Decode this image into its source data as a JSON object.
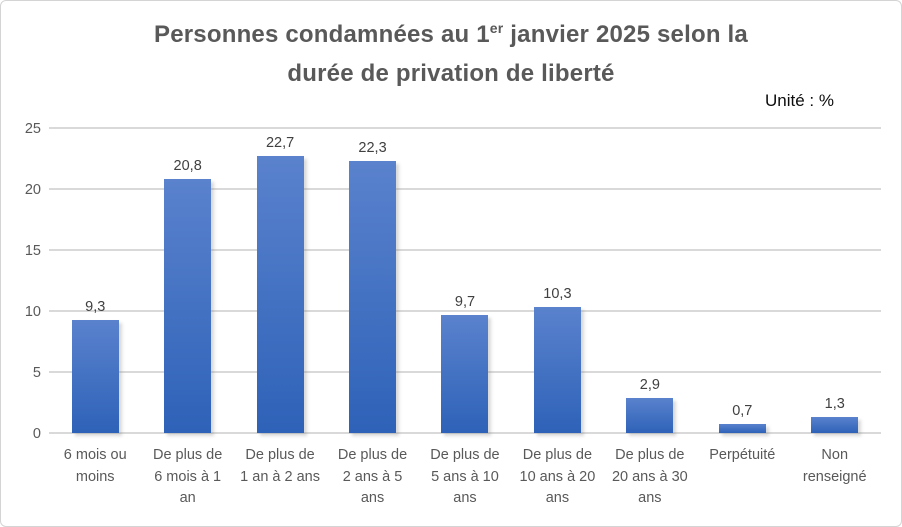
{
  "title": {
    "full": "Personnes condamnées au 1er janvier 2025 selon la durée de privation de liberté",
    "line1_pre": "Personnes condamnées au 1",
    "line1_sup": "er",
    "line1_post": " janvier 2025 selon la",
    "line2": "durée de privation de liberté"
  },
  "unit_label": "Unité : %",
  "colors": {
    "bar_gradient_top": "#5a82cd",
    "bar_gradient_bottom": "#2e62b8",
    "gridline": "#d9d9d9",
    "title_text": "#595959",
    "axis_text": "#595959",
    "data_label_text": "#404040",
    "frame_border": "#d4d4d4"
  },
  "chart_data": {
    "type": "bar",
    "title": "Personnes condamnées au 1er janvier 2025 selon la durée de privation de liberté",
    "subtitle": "Unité : %",
    "xlabel": "",
    "ylabel": "",
    "ylim": [
      0,
      25
    ],
    "yticks": [
      0,
      5,
      10,
      15,
      20,
      25
    ],
    "grid": true,
    "legend": false,
    "categories": [
      "6 mois ou moins",
      "De plus de 6 mois à 1 an",
      "De plus de 1 an à 2 ans",
      "De plus de 2 ans à 5 ans",
      "De plus de 5 ans à 10 ans",
      "De plus de 10 ans à 20 ans",
      "De plus de 20 ans à 30 ans",
      "Perpétuité",
      "Non renseigné"
    ],
    "category_lines": [
      [
        "6 mois ou",
        "moins"
      ],
      [
        "De plus de",
        "6 mois à 1",
        "an"
      ],
      [
        "De plus de",
        "1 an à 2 ans"
      ],
      [
        "De plus de",
        "2 ans à 5",
        "ans"
      ],
      [
        "De plus de",
        "5 ans à 10",
        "ans"
      ],
      [
        "De plus de",
        "10 ans à 20",
        "ans"
      ],
      [
        "De plus de",
        "20 ans à 30",
        "ans"
      ],
      [
        "Perpétuité"
      ],
      [
        "Non",
        "renseigné"
      ]
    ],
    "values": [
      9.3,
      20.8,
      22.7,
      22.3,
      9.7,
      10.3,
      2.9,
      0.7,
      1.3
    ],
    "value_labels": [
      "9,3",
      "20,8",
      "22,7",
      "22,3",
      "9,7",
      "10,3",
      "2,9",
      "0,7",
      "1,3"
    ]
  }
}
